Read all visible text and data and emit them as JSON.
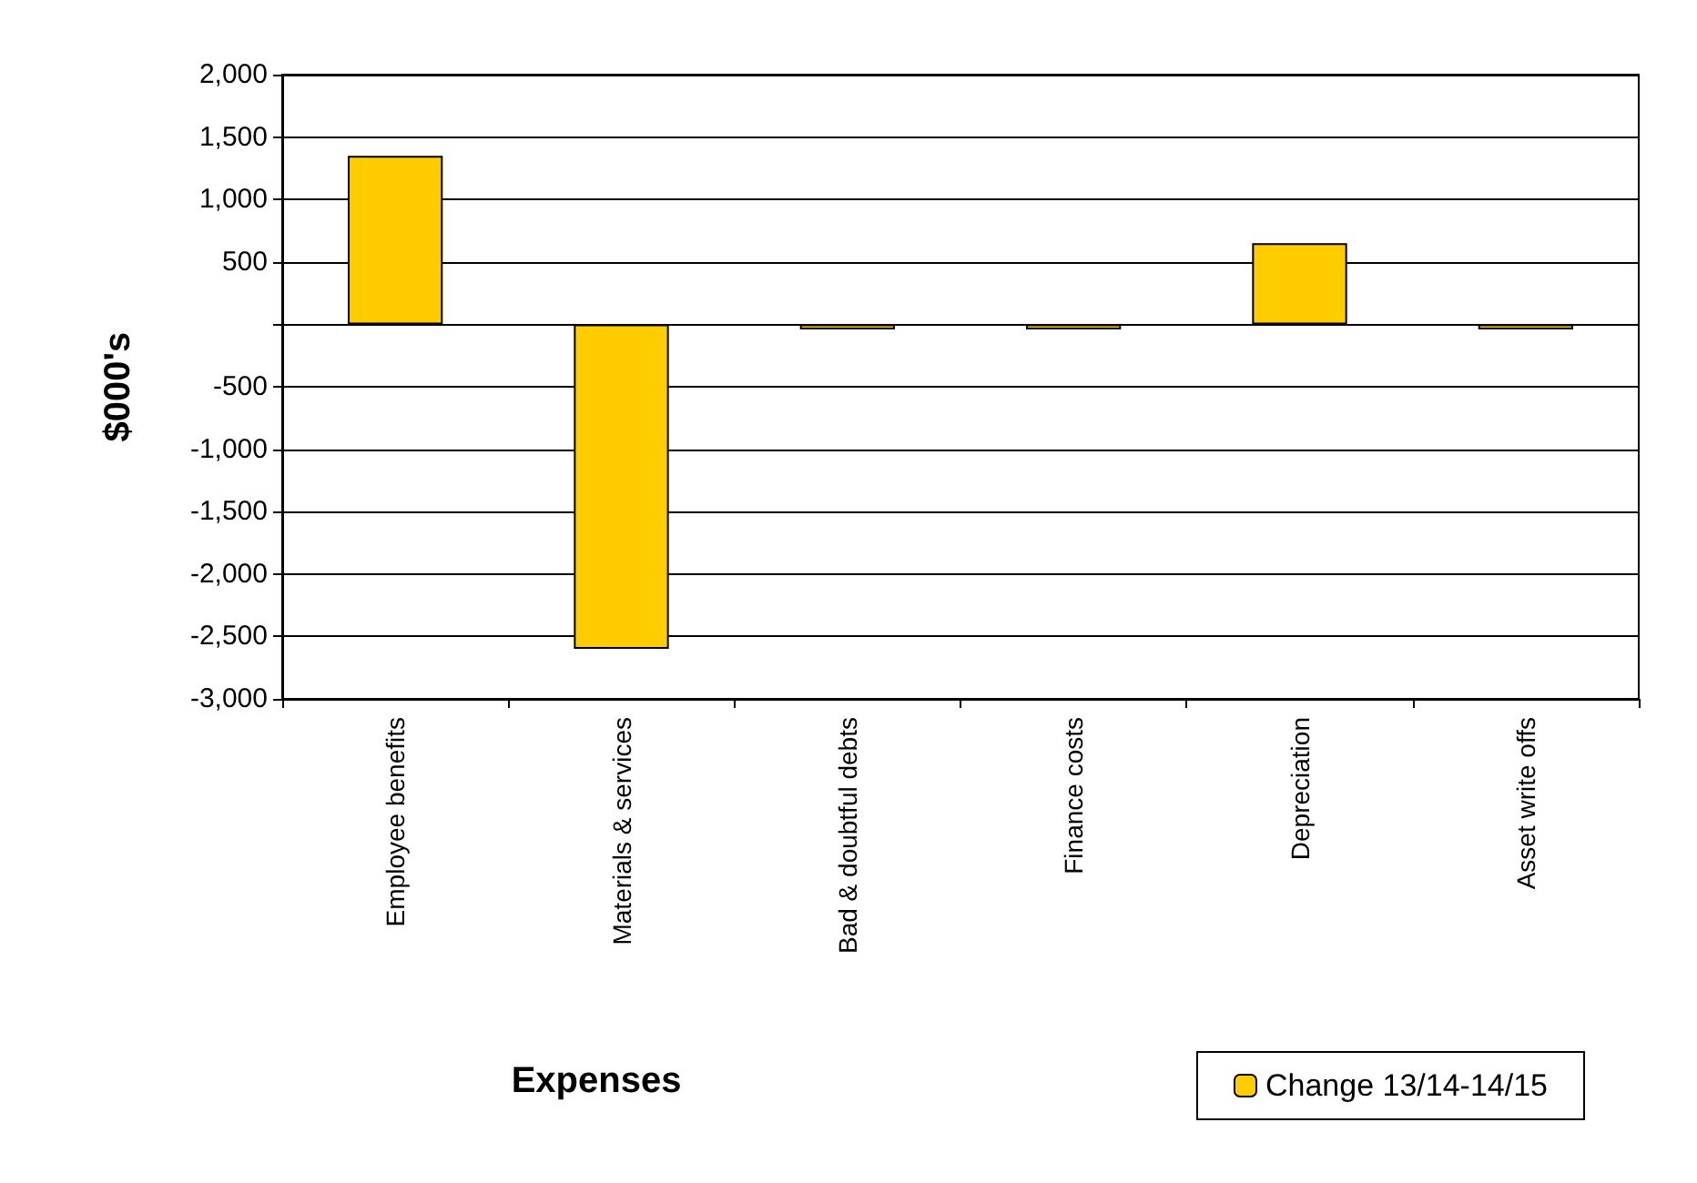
{
  "chart_data": {
    "type": "bar",
    "xlabel": "Expenses",
    "ylabel": "$000's",
    "categories": [
      "Employee benefits",
      "Materials & services",
      "Bad & doubtful debts",
      "Finance costs",
      "Depreciation",
      "Asset write offs"
    ],
    "series": [
      {
        "name": "Change 13/14-14/15",
        "color": "#ffcc00",
        "values": [
          1350,
          -2600,
          -40,
          -40,
          650,
          -40
        ]
      }
    ],
    "ylim": [
      -3000,
      2000
    ],
    "yticks": [
      {
        "value": -3000,
        "label": "-3,000"
      },
      {
        "value": -2500,
        "label": "-2,500"
      },
      {
        "value": -2000,
        "label": "-2,000"
      },
      {
        "value": -1500,
        "label": "-1,500"
      },
      {
        "value": -1000,
        "label": "-1,000"
      },
      {
        "value": -500,
        "label": "-500"
      },
      {
        "value": 0,
        "label": null
      },
      {
        "value": 500,
        "label": "500"
      },
      {
        "value": 1000,
        "label": "1,000"
      },
      {
        "value": 1500,
        "label": "1,500"
      },
      {
        "value": 2000,
        "label": "2,000"
      }
    ],
    "grid": "y",
    "legend": "bottom right"
  }
}
